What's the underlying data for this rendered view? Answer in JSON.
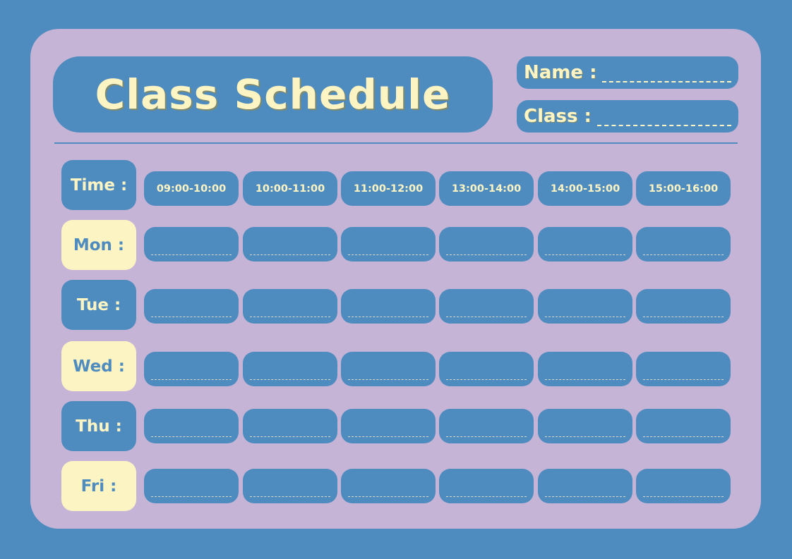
{
  "title": "Class Schedule",
  "name_label": "Name :",
  "class_label": "Class :",
  "time_label": "Time :",
  "time_slots": [
    "09:00-10:00",
    "10:00-11:00",
    "11:00-12:00",
    "13:00-14:00",
    "14:00-15:00",
    "15:00-16:00"
  ],
  "days": [
    "Mon :",
    "Tue :",
    "Wed :",
    "Thu :",
    "Fri :"
  ],
  "colors": {
    "background": "#4E8BBF",
    "card": "#C5B4D6",
    "accent": "#FDF4C4"
  }
}
